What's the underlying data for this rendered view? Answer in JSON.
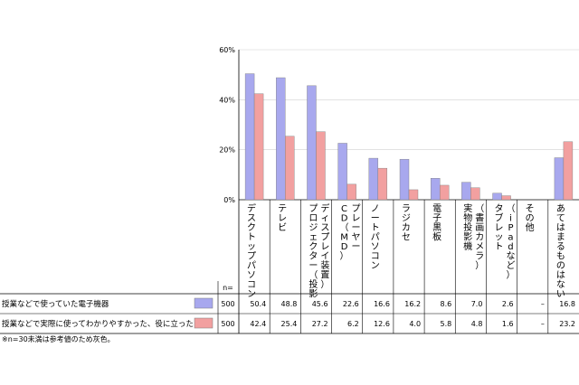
{
  "chart_data": {
    "type": "bar",
    "ylim": [
      0,
      60
    ],
    "yticks": [
      "0%",
      "20%",
      "40%",
      "60%"
    ],
    "categories": [
      "デスクトップパソコン",
      "テレビ",
      "プロジェクター（投影ディスプレイ装置）",
      "CD（MD）プレーヤー",
      "ノートパソコン",
      "ラジカセ",
      "電子黒板",
      "実物投影機（書画カメラ）",
      "タブレット（iPadなど）",
      "その他",
      "あてはまるものはない"
    ],
    "category_lines": [
      [
        "デスクトップパソコン"
      ],
      [
        "テレビ"
      ],
      [
        "プロジェクター（投影",
        "ディスプレイ装置）"
      ],
      [
        "CD（MD）",
        "プレーヤー"
      ],
      [
        "ノートパソコン"
      ],
      [
        "ラジカセ"
      ],
      [
        "電子黒板"
      ],
      [
        "実物投影機",
        "（書画カメラ）"
      ],
      [
        "タブレット",
        "（iPadなど）"
      ],
      [
        "その他"
      ],
      [
        "あてはまるものはない"
      ]
    ],
    "series": [
      {
        "name": "授業などで使っていた電子機器",
        "color": "#a8a8ee",
        "n": "500",
        "values": [
          50.4,
          48.8,
          45.6,
          22.6,
          16.6,
          16.2,
          8.6,
          7.0,
          2.6,
          null,
          16.8
        ],
        "labels": [
          "50.4",
          "48.8",
          "45.6",
          "22.6",
          "16.6",
          "16.2",
          "8.6",
          "7.0",
          "2.6",
          "–",
          "16.8"
        ]
      },
      {
        "name": "授業などで実際に使ってわかりやすかった、役に立った",
        "color": "#f2a0a0",
        "n": "500",
        "values": [
          42.4,
          25.4,
          27.2,
          6.2,
          12.6,
          4.0,
          5.8,
          4.8,
          1.6,
          null,
          23.2
        ],
        "labels": [
          "42.4",
          "25.4",
          "27.2",
          "6.2",
          "12.6",
          "4.0",
          "5.8",
          "4.8",
          "1.6",
          "–",
          "23.2"
        ]
      }
    ],
    "n_header": "n=",
    "footnote": "※n=30未満は参考値のため灰色。"
  }
}
